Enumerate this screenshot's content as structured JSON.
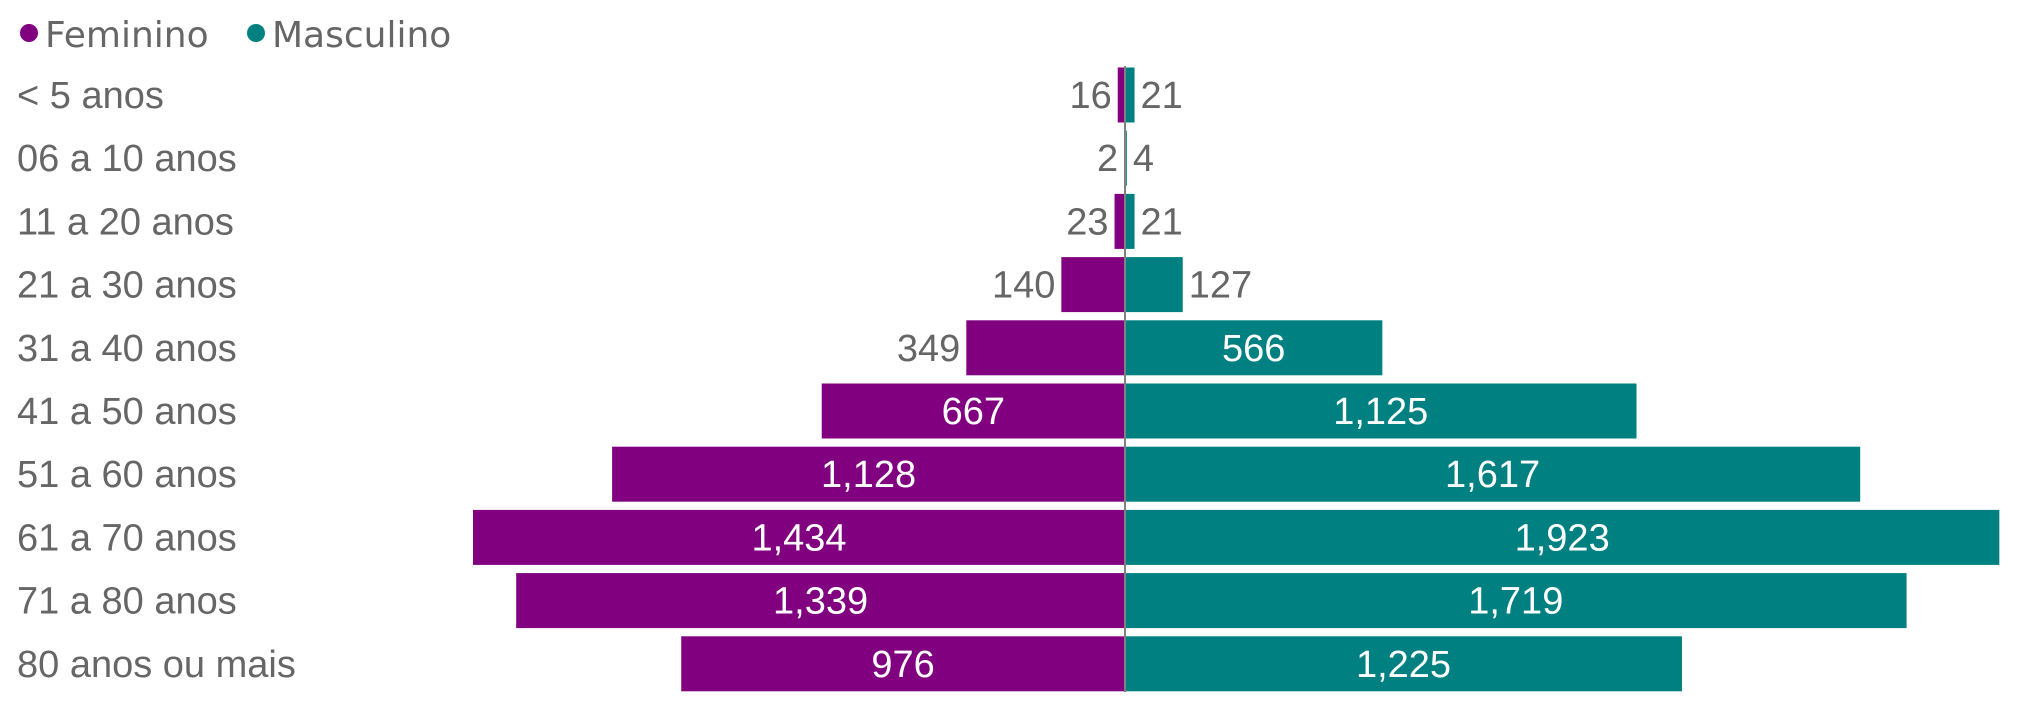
{
  "chart_data": {
    "type": "bar",
    "orientation": "horizontal",
    "layout": "population-pyramid",
    "categories": [
      "< 5 anos",
      "06 a 10 anos",
      "11 a 20 anos",
      "21 a 30 anos",
      "31 a 40 anos",
      "41 a 50 anos",
      "51 a 60 anos",
      "61 a 70 anos",
      "71 a 80 anos",
      "80 anos ou mais"
    ],
    "series": [
      {
        "name": "Feminino",
        "color": "#800080",
        "values": [
          16,
          2,
          23,
          140,
          349,
          667,
          1128,
          1434,
          1339,
          976
        ],
        "labels": [
          "16",
          "2",
          "23",
          "140",
          "349",
          "667",
          "1,128",
          "1,434",
          "1,339",
          "976"
        ]
      },
      {
        "name": "Masculino",
        "color": "#008080",
        "values": [
          21,
          4,
          21,
          127,
          566,
          1125,
          1617,
          1923,
          1719,
          1225
        ],
        "labels": [
          "21",
          "4",
          "21",
          "127",
          "566",
          "1,125",
          "1,617",
          "1,923",
          "1,719",
          "1,225"
        ]
      }
    ],
    "legend_position": "top-left",
    "grid": false
  },
  "colors": {
    "text": "#666666",
    "axis": "#808080",
    "inside_label": "#ffffff"
  }
}
